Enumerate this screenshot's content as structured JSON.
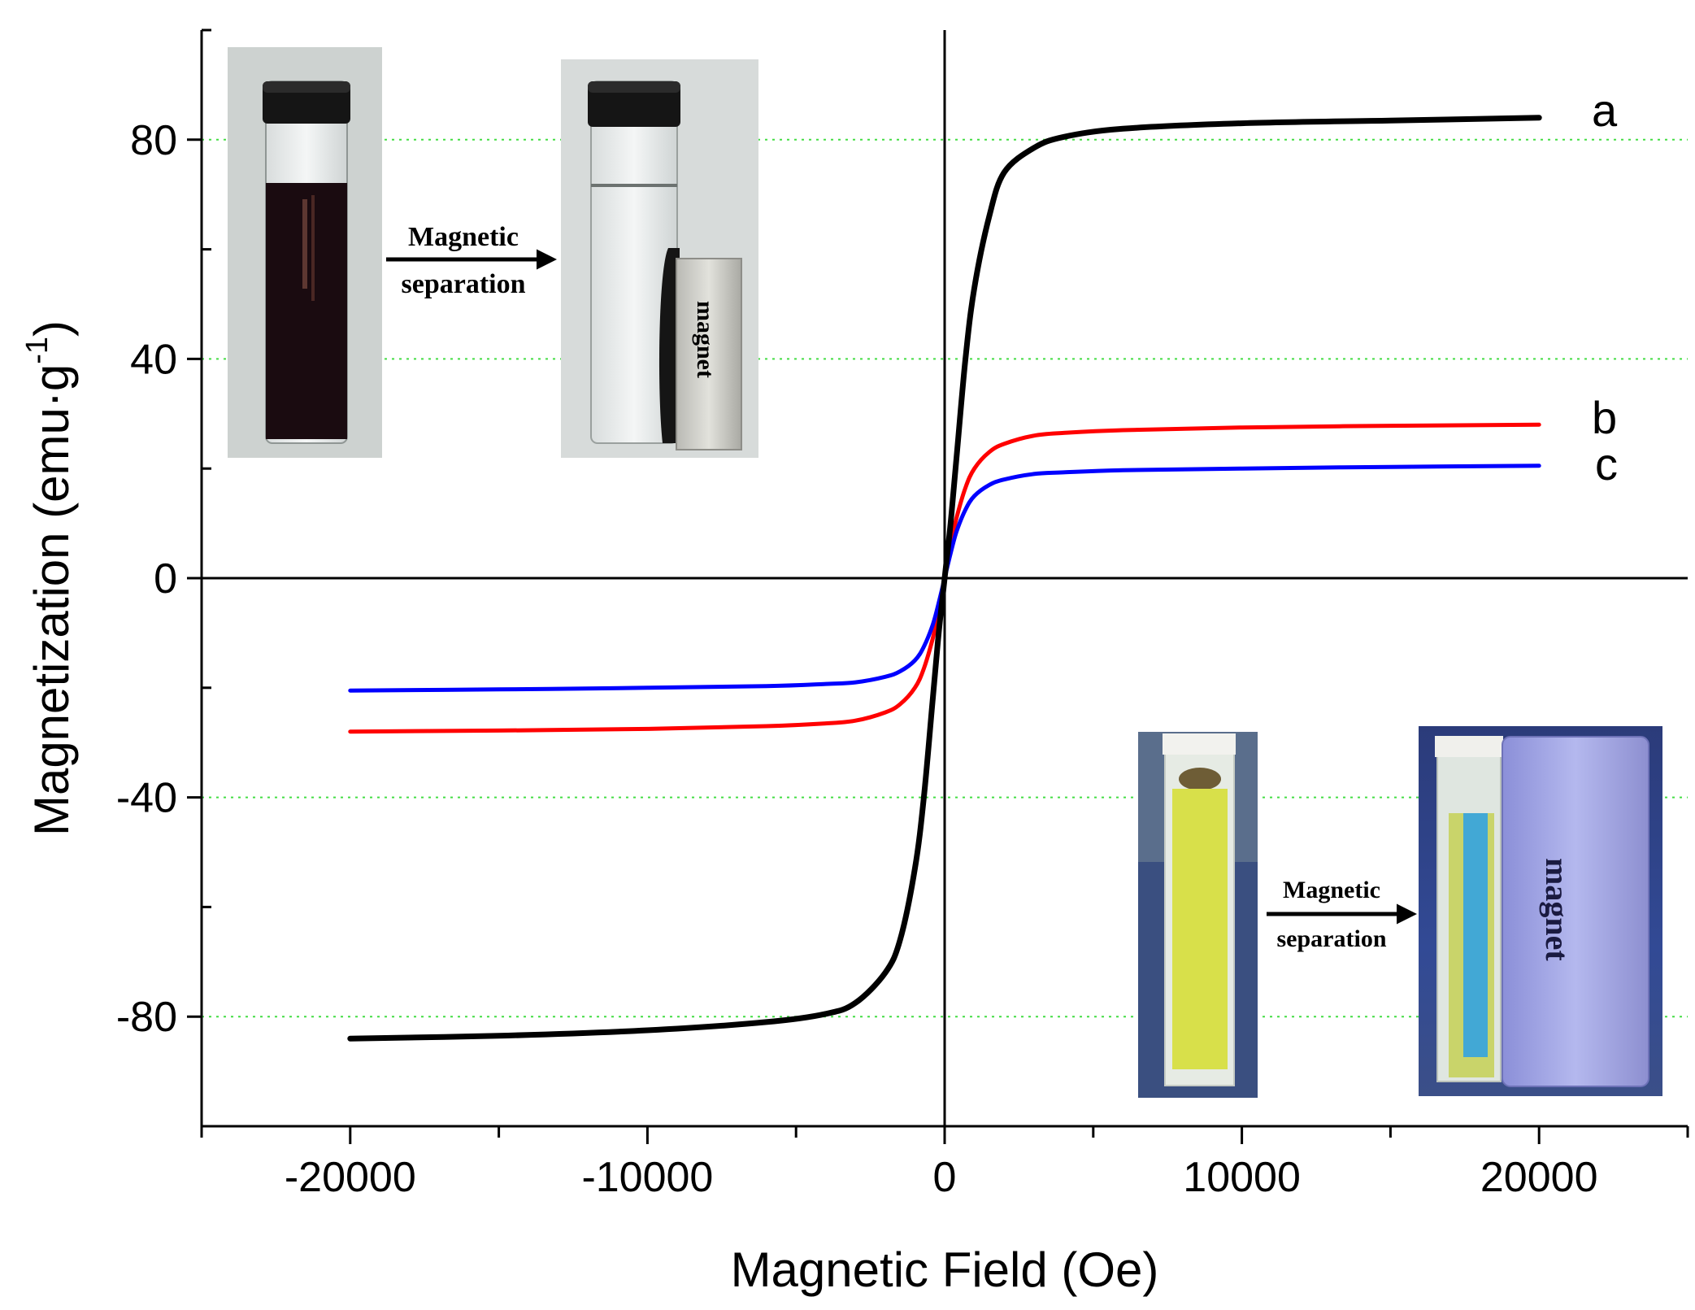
{
  "chart_data": {
    "type": "line",
    "title": "",
    "xlabel": "Magnetic Field (Oe)",
    "ylabel": "Magnetization (emu·g",
    "ylabel_superscript": "-1",
    "ylabel_suffix": ")",
    "xlim": [
      -25000,
      25000
    ],
    "ylim": [
      -100,
      100
    ],
    "x_ticks": [
      -20000,
      -10000,
      0,
      10000,
      20000
    ],
    "y_ticks": [
      -80,
      -40,
      0,
      40,
      80
    ],
    "grid": "horizontal dotted at labeled y ticks",
    "legend": "none (curve labels at right end)",
    "series": [
      {
        "name": "a",
        "color": "#000000",
        "x": [
          -20000,
          -15000,
          -10000,
          -6000,
          -4000,
          -3000,
          -2000,
          -1500,
          -1000,
          -700,
          -400,
          -200,
          0,
          200,
          400,
          700,
          1000,
          1500,
          2000,
          3000,
          4000,
          6000,
          10000,
          15000,
          20000
        ],
        "y": [
          -84,
          -83.5,
          -82.5,
          -81,
          -79.5,
          -77.5,
          -72,
          -66,
          -53,
          -40,
          -22,
          -10,
          0,
          10,
          22,
          40,
          53,
          66,
          74,
          78.5,
          80.5,
          82,
          83,
          83.5,
          84
        ]
      },
      {
        "name": "b",
        "color": "#ff0000",
        "x": [
          -20000,
          -15000,
          -10000,
          -6000,
          -4000,
          -3000,
          -2000,
          -1500,
          -1000,
          -700,
          -400,
          -200,
          0,
          200,
          400,
          700,
          1000,
          1500,
          2000,
          3000,
          4000,
          6000,
          10000,
          15000,
          20000
        ],
        "y": [
          -28,
          -27.8,
          -27.5,
          -27,
          -26.5,
          -26,
          -24.5,
          -23,
          -20,
          -16.5,
          -11,
          -6,
          0,
          6,
          11,
          16.5,
          20,
          23,
          24.5,
          26,
          26.5,
          27,
          27.5,
          27.8,
          28
        ]
      },
      {
        "name": "c",
        "color": "#0000ff",
        "x": [
          -20000,
          -15000,
          -10000,
          -6000,
          -4000,
          -3000,
          -2000,
          -1500,
          -1000,
          -700,
          -400,
          -200,
          0,
          200,
          400,
          700,
          1000,
          1500,
          2000,
          3000,
          4000,
          6000,
          10000,
          15000,
          20000
        ],
        "y": [
          -20.5,
          -20.3,
          -20,
          -19.7,
          -19.3,
          -19,
          -18,
          -17,
          -15,
          -12.5,
          -8.5,
          -4.5,
          0,
          4.5,
          8.5,
          12.5,
          15,
          17,
          18,
          19,
          19.3,
          19.7,
          20,
          20.3,
          20.5
        ]
      }
    ]
  },
  "insets": {
    "top": {
      "arrow_label_line1": "Magnetic",
      "arrow_label_line2": "separation",
      "magnet_label": "magnet"
    },
    "bottom": {
      "arrow_label_line1": "Magnetic",
      "arrow_label_line2": "separation",
      "magnet_label": "magnet"
    }
  },
  "colors": {
    "grid": "#44dd44",
    "axes": "#000000",
    "dark_suspension": "#1a0b10",
    "yellow_solution": "#d8e04a",
    "blue_fluorescence": "#2aa0e8"
  }
}
